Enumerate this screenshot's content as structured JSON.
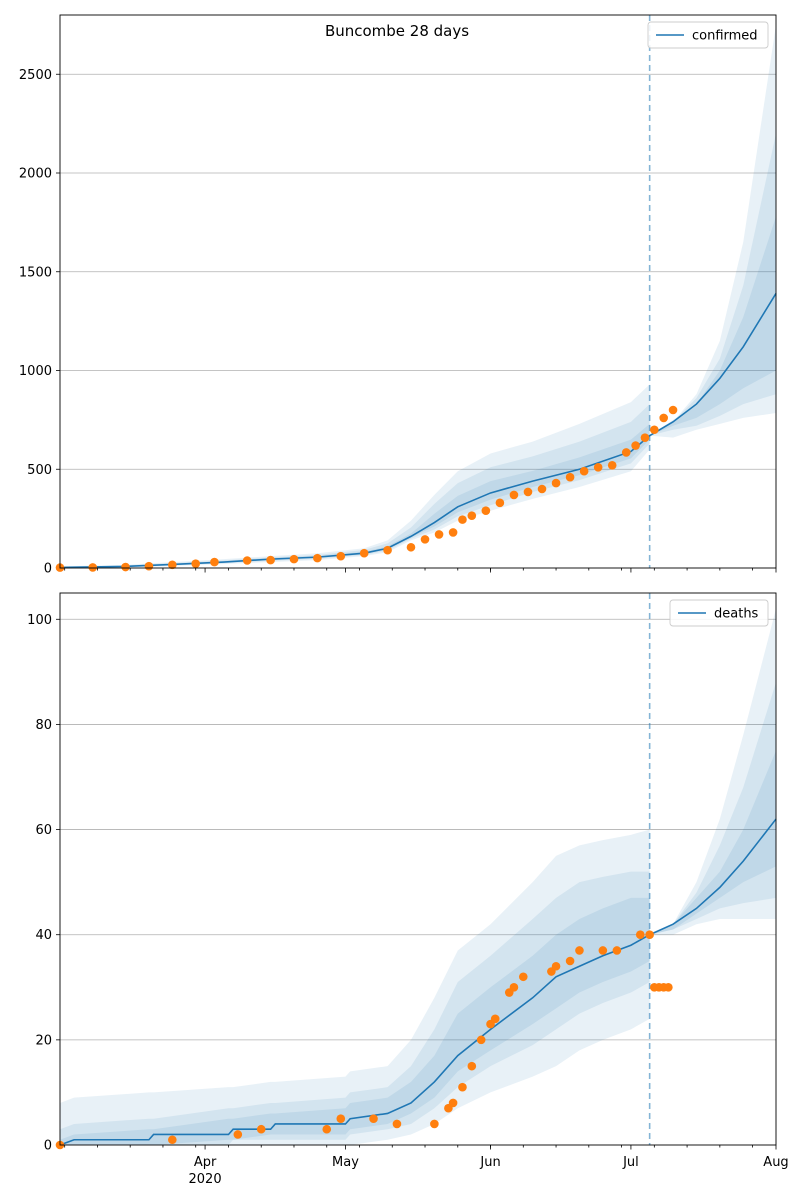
{
  "figure": {
    "title": "Buncombe 28 days"
  },
  "colors": {
    "forecast": "#1f77b4",
    "observed": "#ff7f0e",
    "band": "#1f77b4",
    "grid": "#b0b0b0",
    "vline": "#1f77b4"
  },
  "chart_data": [
    {
      "type": "line",
      "metric": "confirmed",
      "legend": {
        "label": "confirmed",
        "placement": "upper right"
      },
      "ylim": [
        0,
        2800
      ],
      "yticks": [
        0,
        500,
        1000,
        1500,
        2000,
        2500
      ],
      "grid": "horizontal",
      "forecast_start": "2020-07-05",
      "xrange": [
        "2020-03-01",
        "2020-08-01"
      ],
      "xticks": [
        {
          "date": "2020-04-01",
          "label": "Apr",
          "sublabel": ""
        },
        {
          "date": "2020-05-01",
          "label": "May",
          "sublabel": ""
        },
        {
          "date": "2020-06-01",
          "label": "Jun",
          "sublabel": ""
        },
        {
          "date": "2020-07-01",
          "label": "Jul",
          "sublabel": ""
        },
        {
          "date": "2020-08-01",
          "label": "Aug",
          "sublabel": ""
        }
      ],
      "forecast": {
        "name": "confirmed",
        "dates": [
          "2020-03-01",
          "2020-03-15",
          "2020-03-25",
          "2020-04-05",
          "2020-04-15",
          "2020-04-25",
          "2020-05-05",
          "2020-05-10",
          "2020-05-15",
          "2020-05-20",
          "2020-05-25",
          "2020-06-01",
          "2020-06-10",
          "2020-06-20",
          "2020-07-01",
          "2020-07-05",
          "2020-07-10",
          "2020-07-15",
          "2020-07-20",
          "2020-07-25",
          "2020-08-01"
        ],
        "median": [
          3,
          8,
          18,
          30,
          45,
          55,
          75,
          100,
          160,
          230,
          310,
          380,
          440,
          500,
          590,
          670,
          740,
          830,
          960,
          1120,
          1390
        ],
        "bands": [
          {
            "lower": [
              0,
              2,
              10,
              20,
              30,
              40,
              60,
              80,
              140,
              180,
              240,
              290,
              350,
              410,
              490,
              600,
              660,
              700,
              730,
              760,
              785
            ],
            "upper": [
              8,
              16,
              30,
              45,
              60,
              75,
              100,
              140,
              240,
              370,
              490,
              580,
              640,
              730,
              840,
              930,
              740,
              880,
              1150,
              1650,
              2750
            ]
          },
          {
            "lower": [
              1,
              4,
              13,
              24,
              36,
              46,
              66,
              88,
              148,
              195,
              262,
              318,
              385,
              445,
              530,
              630,
              700,
              720,
              770,
              830,
              880
            ],
            "upper": [
              6,
              12,
              25,
              38,
              54,
              66,
              92,
              125,
              205,
              325,
              430,
              510,
              565,
              640,
              740,
              830,
              740,
              860,
              1060,
              1430,
              2200
            ]
          },
          {
            "lower": [
              2,
              6,
              15,
              27,
              40,
              51,
              70,
              95,
              155,
              210,
              282,
              346,
              410,
              470,
              555,
              650,
              720,
              760,
              830,
              910,
              1000
            ],
            "upper": [
              4,
              10,
              21,
              33,
              50,
              60,
              82,
              110,
              175,
              275,
              365,
              440,
              492,
              560,
              650,
              730,
              750,
              830,
              1000,
              1270,
              1780
            ]
          }
        ]
      },
      "observed": {
        "dates": [
          "2020-03-01",
          "2020-03-08",
          "2020-03-15",
          "2020-03-20",
          "2020-03-25",
          "2020-03-30",
          "2020-04-03",
          "2020-04-10",
          "2020-04-15",
          "2020-04-20",
          "2020-04-25",
          "2020-04-30",
          "2020-05-05",
          "2020-05-10",
          "2020-05-15",
          "2020-05-18",
          "2020-05-21",
          "2020-05-24",
          "2020-05-26",
          "2020-05-28",
          "2020-05-31",
          "2020-06-03",
          "2020-06-06",
          "2020-06-09",
          "2020-06-12",
          "2020-06-15",
          "2020-06-18",
          "2020-06-21",
          "2020-06-24",
          "2020-06-27",
          "2020-06-30",
          "2020-07-02",
          "2020-07-04",
          "2020-07-06",
          "2020-07-08",
          "2020-07-10"
        ],
        "values": [
          2,
          3,
          5,
          9,
          16,
          22,
          30,
          38,
          40,
          45,
          50,
          60,
          75,
          90,
          105,
          145,
          170,
          180,
          245,
          265,
          290,
          330,
          370,
          385,
          400,
          430,
          460,
          490,
          510,
          520,
          585,
          620,
          660,
          700,
          760,
          800
        ]
      }
    },
    {
      "type": "line",
      "metric": "deaths",
      "legend": {
        "label": "deaths",
        "placement": "upper right"
      },
      "ylim": [
        0,
        105
      ],
      "yticks": [
        0,
        20,
        40,
        60,
        80,
        100
      ],
      "grid": "horizontal",
      "forecast_start": "2020-07-05",
      "xrange": [
        "2020-03-01",
        "2020-08-01"
      ],
      "xticks": [
        {
          "date": "2020-04-01",
          "label": "Apr",
          "sublabel": "2020"
        },
        {
          "date": "2020-05-01",
          "label": "May",
          "sublabel": ""
        },
        {
          "date": "2020-06-01",
          "label": "Jun",
          "sublabel": ""
        },
        {
          "date": "2020-07-01",
          "label": "Jul",
          "sublabel": ""
        },
        {
          "date": "2020-08-01",
          "label": "Aug",
          "sublabel": ""
        }
      ],
      "forecast": {
        "name": "deaths",
        "dates": [
          "2020-03-01",
          "2020-03-04",
          "2020-03-20",
          "2020-03-21",
          "2020-04-06",
          "2020-04-07",
          "2020-04-15",
          "2020-04-16",
          "2020-05-01",
          "2020-05-02",
          "2020-05-10",
          "2020-05-15",
          "2020-05-20",
          "2020-05-25",
          "2020-06-01",
          "2020-06-10",
          "2020-06-15",
          "2020-06-20",
          "2020-06-25",
          "2020-07-01",
          "2020-07-05",
          "2020-07-10",
          "2020-07-15",
          "2020-07-20",
          "2020-07-25",
          "2020-08-01"
        ],
        "median": [
          0,
          1,
          1,
          2,
          2,
          3,
          3,
          4,
          4,
          5,
          6,
          8,
          12,
          17,
          22,
          28,
          32,
          34,
          36,
          38,
          40,
          42,
          45,
          49,
          54,
          62
        ],
        "bands": [
          {
            "lower": [
              0,
              0,
              0,
              0,
              0,
              0,
              0,
              0,
              0,
              0,
              1,
              2,
              4,
              7,
              10,
              13,
              15,
              18,
              20,
              22,
              24,
              40,
              42,
              43,
              43,
              43
            ],
            "upper": [
              8,
              9,
              10,
              10,
              11,
              11,
              12,
              12,
              13,
              14,
              15,
              20,
              28,
              37,
              42,
              50,
              55,
              57,
              58,
              59,
              60,
              42,
              50,
              62,
              78,
              102
            ]
          },
          {
            "lower": [
              0,
              0,
              0,
              0,
              0,
              1,
              1,
              1,
              1,
              2,
              3,
              4,
              7,
              11,
              15,
              19,
              22,
              25,
              27,
              29,
              31,
              41,
              43,
              45,
              46,
              47
            ],
            "upper": [
              3,
              4,
              5,
              5,
              7,
              7,
              8,
              8,
              9,
              10,
              11,
              15,
              22,
              31,
              36,
              43,
              47,
              50,
              51,
              52,
              52,
              42,
              48,
              57,
              68,
              88
            ]
          },
          {
            "lower": [
              0,
              0,
              0,
              0,
              1,
              1,
              2,
              2,
              2,
              3,
              4,
              6,
              9,
              14,
              18,
              23,
              26,
              29,
              31,
              33,
              35,
              41,
              44,
              47,
              50,
              53
            ],
            "upper": [
              1,
              2,
              3,
              3,
              5,
              5,
              6,
              6,
              7,
              8,
              9,
              12,
              17,
              25,
              30,
              36,
              40,
              43,
              45,
              47,
              47,
              42,
              47,
              52,
              60,
              75
            ]
          }
        ]
      },
      "observed": {
        "dates": [
          "2020-03-01",
          "2020-03-25",
          "2020-04-08",
          "2020-04-13",
          "2020-04-27",
          "2020-04-30",
          "2020-05-07",
          "2020-05-12",
          "2020-05-20",
          "2020-05-23",
          "2020-05-24",
          "2020-05-26",
          "2020-05-28",
          "2020-05-30",
          "2020-06-01",
          "2020-06-02",
          "2020-06-05",
          "2020-06-06",
          "2020-06-08",
          "2020-06-14",
          "2020-06-15",
          "2020-06-18",
          "2020-06-20",
          "2020-06-25",
          "2020-06-28",
          "2020-07-03",
          "2020-07-05",
          "2020-07-06",
          "2020-07-07",
          "2020-07-08",
          "2020-07-09"
        ],
        "values": [
          0,
          1,
          2,
          3,
          3,
          5,
          5,
          4,
          4,
          7,
          8,
          11,
          15,
          20,
          23,
          24,
          29,
          30,
          32,
          33,
          34,
          35,
          37,
          37,
          37,
          40,
          40,
          30,
          30,
          30,
          30
        ]
      }
    }
  ]
}
